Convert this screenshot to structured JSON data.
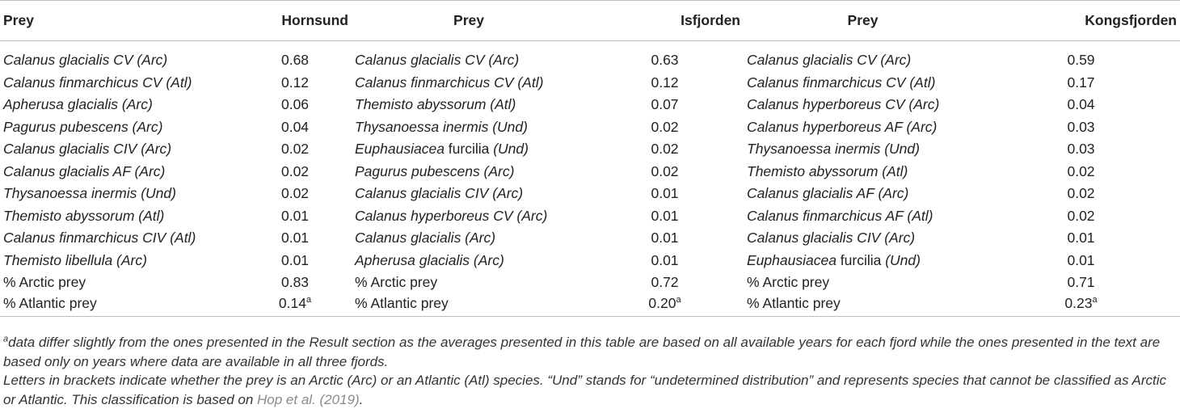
{
  "headers": [
    "Prey",
    "Hornsund",
    "Prey",
    "Isfjorden",
    "Prey",
    "Kongsfjorden"
  ],
  "rows": [
    [
      {
        "name": "Calanus glacialis CV (Arc)",
        "roman": ""
      },
      "0.68",
      {
        "name": "Calanus glacialis CV (Arc)",
        "roman": ""
      },
      "0.63",
      {
        "name": "Calanus glacialis CV (Arc)",
        "roman": ""
      },
      "0.59"
    ],
    [
      {
        "name": "Calanus finmarchicus CV (Atl)",
        "roman": ""
      },
      "0.12",
      {
        "name": "Calanus finmarchicus CV (Atl)",
        "roman": ""
      },
      "0.12",
      {
        "name": "Calanus finmarchicus CV (Atl)",
        "roman": ""
      },
      "0.17"
    ],
    [
      {
        "name": "Apherusa glacialis (Arc)",
        "roman": ""
      },
      "0.06",
      {
        "name": "Themisto abyssorum (Atl)",
        "roman": ""
      },
      "0.07",
      {
        "name": "Calanus hyperboreus CV (Arc)",
        "roman": ""
      },
      "0.04"
    ],
    [
      {
        "name": "Pagurus pubescens (Arc)",
        "roman": ""
      },
      "0.04",
      {
        "name": "Thysanoessa inermis (Und)",
        "roman": ""
      },
      "0.02",
      {
        "name": "Calanus hyperboreus AF (Arc)",
        "roman": ""
      },
      "0.03"
    ],
    [
      {
        "name": "Calanus glacialis CIV (Arc)",
        "roman": ""
      },
      "0.02",
      {
        "name": "Euphausiacea",
        "roman": " furcilia",
        "after": " (Und)"
      },
      "0.02",
      {
        "name": "Thysanoessa inermis (Und)",
        "roman": ""
      },
      "0.03"
    ],
    [
      {
        "name": "Calanus glacialis AF (Arc)",
        "roman": ""
      },
      "0.02",
      {
        "name": "Pagurus pubescens (Arc)",
        "roman": ""
      },
      "0.02",
      {
        "name": "Themisto abyssorum (Atl)",
        "roman": ""
      },
      "0.02"
    ],
    [
      {
        "name": "Thysanoessa inermis (Und)",
        "roman": ""
      },
      "0.02",
      {
        "name": "Calanus glacialis CIV (Arc)",
        "roman": ""
      },
      "0.01",
      {
        "name": "Calanus glacialis AF (Arc)",
        "roman": ""
      },
      "0.02"
    ],
    [
      {
        "name": "Themisto abyssorum (Atl)",
        "roman": ""
      },
      "0.01",
      {
        "name": "Calanus hyperboreus CV (Arc)",
        "roman": ""
      },
      "0.01",
      {
        "name": "Calanus finmarchicus AF (Atl)",
        "roman": ""
      },
      "0.02"
    ],
    [
      {
        "name": "Calanus finmarchicus CIV (Atl)",
        "roman": ""
      },
      "0.01",
      {
        "name": "Calanus glacialis (Arc)",
        "roman": ""
      },
      "0.01",
      {
        "name": "Calanus glacialis CIV (Arc)",
        "roman": ""
      },
      "0.01"
    ],
    [
      {
        "name": "Themisto libellula (Arc)",
        "roman": ""
      },
      "0.01",
      {
        "name": "Apherusa glacialis (Arc)",
        "roman": ""
      },
      "0.01",
      {
        "name": "Euphausiacea",
        "roman": " furcilia",
        "after": " (Und)"
      },
      "0.01"
    ]
  ],
  "summary": [
    {
      "label": "% Arctic prey",
      "values": [
        "0.83",
        "0.72",
        "0.71"
      ],
      "sup": [
        "",
        "",
        ""
      ]
    },
    {
      "label": "% Atlantic prey",
      "values": [
        "0.14",
        "0.20",
        "0.23"
      ],
      "sup": [
        "a",
        "a",
        "a"
      ]
    }
  ],
  "notes": {
    "footnote_mark": "a",
    "footnote_text": "data differ slightly from the ones presented in the Result section as the averages presented in this table are based on all available years for each fjord while the ones presented in the text are based only on years where data are available in all three fjords.",
    "legend_text_1": "Letters in brackets indicate whether the prey is an Arctic (Arc) or an Atlantic (Atl) species. “Und” stands for “undetermined distribution” and represents species that cannot be classified as Arctic or Atlantic. This classification is based on ",
    "legend_ref": "Hop et al. (2019)",
    "legend_end": "."
  }
}
